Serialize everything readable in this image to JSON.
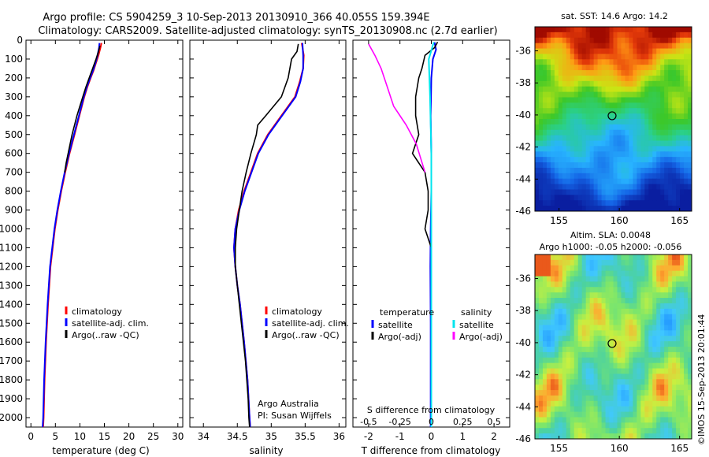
{
  "header": {
    "line1": "Argo profile: CS 5904259_3 10-Sep-2013 20130910_366 40.055S 159.394E",
    "line2": "Climatology: CARS2009. Satellite-adjusted climatology: synTS_20130908.nc (2.7d earlier)"
  },
  "colors": {
    "climatology": "#ff0000",
    "satellite": "#0000ff",
    "argo": "#000000",
    "salinity_sat": "#00e5ee",
    "salinity_argo": "#ff00ff"
  },
  "chart_data": [
    {
      "id": "temperature",
      "type": "line",
      "xlabel": "temperature (deg C)",
      "ylabel": "",
      "xlim": [
        -1,
        31
      ],
      "ylim": [
        2050,
        0
      ],
      "xticks": [
        0,
        5,
        10,
        15,
        20,
        25,
        30
      ],
      "yticks": [
        0,
        100,
        200,
        300,
        400,
        500,
        600,
        700,
        800,
        900,
        1000,
        1100,
        1200,
        1300,
        1400,
        1500,
        1600,
        1700,
        1800,
        1900,
        2000
      ],
      "legend": {
        "position": "center-right",
        "entries": [
          "climatology",
          "satellite-adj. clim.",
          "Argo(..raw -QC)"
        ]
      },
      "series": [
        {
          "name": "climatology",
          "color": "#ff0000",
          "depth": [
            15,
            40,
            80,
            120,
            160,
            200,
            250,
            300,
            400,
            500,
            600,
            700,
            800,
            900,
            1000,
            1200,
            1400,
            1600,
            1800,
            2000,
            2050
          ],
          "values": [
            14.4,
            14.2,
            13.8,
            13.3,
            12.8,
            12.2,
            11.5,
            10.9,
            9.9,
            8.9,
            7.9,
            7.0,
            6.2,
            5.5,
            4.9,
            4.0,
            3.5,
            3.1,
            2.8,
            2.6,
            2.5
          ]
        },
        {
          "name": "satellite-adj. clim.",
          "color": "#0000ff",
          "depth": [
            15,
            40,
            80,
            120,
            160,
            200,
            250,
            300,
            400,
            500,
            600,
            700,
            800,
            900,
            1000,
            1200,
            1400,
            1600,
            1800,
            2000,
            2050
          ],
          "values": [
            14.0,
            13.9,
            13.6,
            13.2,
            12.7,
            12.1,
            11.4,
            10.8,
            9.8,
            8.8,
            7.8,
            6.9,
            6.1,
            5.4,
            4.8,
            3.9,
            3.4,
            3.0,
            2.7,
            2.5,
            2.4
          ]
        },
        {
          "name": "Argo(..raw -QC)",
          "color": "#000000",
          "depth": [
            30,
            60,
            100,
            150,
            200,
            250,
            300,
            350,
            400,
            450,
            500,
            550,
            600,
            650,
            700
          ],
          "values": [
            14.1,
            13.8,
            13.3,
            12.6,
            11.9,
            11.2,
            10.6,
            10.0,
            9.4,
            8.9,
            8.4,
            8.0,
            7.6,
            7.2,
            6.9
          ]
        }
      ]
    },
    {
      "id": "salinity",
      "type": "line",
      "xlabel": "salinity",
      "xlim": [
        33.8,
        36.1
      ],
      "ylim": [
        2050,
        0
      ],
      "xticks": [
        34,
        34.5,
        35,
        35.5,
        36
      ],
      "legend": {
        "position": "center-right",
        "entries": [
          "climatology",
          "satellite-adj. clim.",
          "Argo(..raw -QC)"
        ]
      },
      "annotation": [
        "Argo Australia",
        "PI: Susan Wijffels"
      ],
      "series": [
        {
          "name": "climatology",
          "color": "#ff0000",
          "depth": [
            15,
            80,
            150,
            220,
            300,
            400,
            500,
            600,
            700,
            800,
            900,
            1000,
            1100,
            1200,
            1300,
            1400,
            1600,
            1800,
            2000,
            2050
          ],
          "values": [
            35.45,
            35.48,
            35.47,
            35.42,
            35.35,
            35.15,
            34.95,
            34.8,
            34.7,
            34.6,
            34.52,
            34.47,
            34.45,
            34.47,
            34.5,
            34.54,
            34.6,
            34.65,
            34.68,
            34.69
          ]
        },
        {
          "name": "satellite-adj. clim.",
          "color": "#0000ff",
          "depth": [
            15,
            80,
            150,
            220,
            300,
            400,
            500,
            600,
            700,
            800,
            900,
            1000,
            1100,
            1200,
            1300,
            1400,
            1600,
            1800,
            2000,
            2050
          ],
          "values": [
            35.46,
            35.47,
            35.47,
            35.43,
            35.36,
            35.16,
            34.96,
            34.81,
            34.71,
            34.61,
            34.53,
            34.47,
            34.45,
            34.47,
            34.5,
            34.54,
            34.6,
            34.65,
            34.68,
            34.69
          ]
        },
        {
          "name": "Argo(..raw -QC)",
          "color": "#000000",
          "depth": [
            20,
            60,
            100,
            200,
            300,
            400,
            450,
            500,
            600,
            700,
            800,
            900,
            1000,
            1100,
            1200,
            1300,
            1400,
            1500,
            1600,
            1700,
            1800,
            1900,
            2000,
            2050
          ],
          "values": [
            35.4,
            35.38,
            35.3,
            35.25,
            35.15,
            34.92,
            34.8,
            34.78,
            34.7,
            34.63,
            34.57,
            34.53,
            34.49,
            34.47,
            34.47,
            34.5,
            34.53,
            34.56,
            34.59,
            34.62,
            34.64,
            34.66,
            34.67,
            34.68
          ]
        }
      ]
    },
    {
      "id": "difference",
      "type": "line",
      "xlabel": "T difference from climatology",
      "xlabel_top": "S difference from climatology",
      "xlim": [
        -2.5,
        2.5
      ],
      "ylim": [
        2050,
        0
      ],
      "xticks": [
        -2,
        -1,
        0,
        1,
        2
      ],
      "xticks_s": [
        "-0.5",
        "-0.25",
        "0",
        "0.25",
        "0.5"
      ],
      "legend": {
        "position": "center",
        "titles": [
          "temperature",
          "salinity"
        ],
        "entries": [
          "satellite",
          "Argo(-adj)",
          "satellite",
          "Argo(-adj)"
        ]
      },
      "series": [
        {
          "name": "temperature satellite",
          "color": "#0000ff",
          "depth": [
            10,
            50,
            100,
            200,
            400,
            600,
            800,
            1000,
            1200,
            1500,
            1800,
            2050
          ],
          "values": [
            0.1,
            0.15,
            0.05,
            0.0,
            -0.02,
            0.0,
            0.0,
            -0.02,
            -0.03,
            -0.02,
            -0.02,
            -0.02
          ]
        },
        {
          "name": "temperature Argo(-adj)",
          "color": "#000000",
          "depth": [
            10,
            40,
            80,
            150,
            200,
            300,
            400,
            500,
            600,
            700,
            800,
            900,
            1000,
            1100,
            1200
          ],
          "values": [
            0.2,
            0.1,
            -0.2,
            -0.3,
            -0.4,
            -0.5,
            -0.5,
            -0.4,
            -0.6,
            -0.2,
            -0.1,
            -0.1,
            -0.2,
            0.0,
            0.0
          ]
        },
        {
          "name": "salinity satellite",
          "color": "#00e5ee",
          "depth": [
            10,
            100,
            300,
            600,
            900,
            1200,
            1500,
            1800,
            2050
          ],
          "values": [
            0.02,
            -0.02,
            -0.01,
            0.0,
            0.0,
            0.0,
            0.0,
            0.0,
            0.0
          ]
        },
        {
          "name": "salinity Argo(-adj)",
          "color": "#ff00ff",
          "depth": [
            20,
            80,
            150,
            250,
            350,
            450,
            550,
            700
          ],
          "values": [
            -0.5,
            -0.45,
            -0.4,
            -0.35,
            -0.3,
            -0.2,
            -0.12,
            -0.05
          ]
        }
      ]
    },
    {
      "id": "sst-map",
      "type": "heatmap",
      "title": "sat. SST: 14.6 Argo: 14.2",
      "xlim": [
        153,
        166
      ],
      "ylim": [
        -46,
        -34.5
      ],
      "xticks": [
        155,
        160,
        165
      ],
      "yticks": [
        -36,
        -38,
        -40,
        -42,
        -44,
        -46
      ],
      "marker": {
        "lon": 159.4,
        "lat": -40.05
      }
    },
    {
      "id": "sla-map",
      "type": "heatmap",
      "title_line1": "Altim. SLA: 0.0048",
      "title_line2": "Argo h1000: -0.05 h2000: -0.056",
      "xlim": [
        153,
        166
      ],
      "ylim": [
        -46,
        -34.5
      ],
      "xticks": [
        155,
        160,
        165
      ],
      "yticks": [
        -36,
        -38,
        -40,
        -42,
        -44,
        -46
      ],
      "marker": {
        "lon": 159.4,
        "lat": -40.05
      }
    }
  ],
  "watermark": "©IMOS 15-Sep-2013 20:01:44"
}
